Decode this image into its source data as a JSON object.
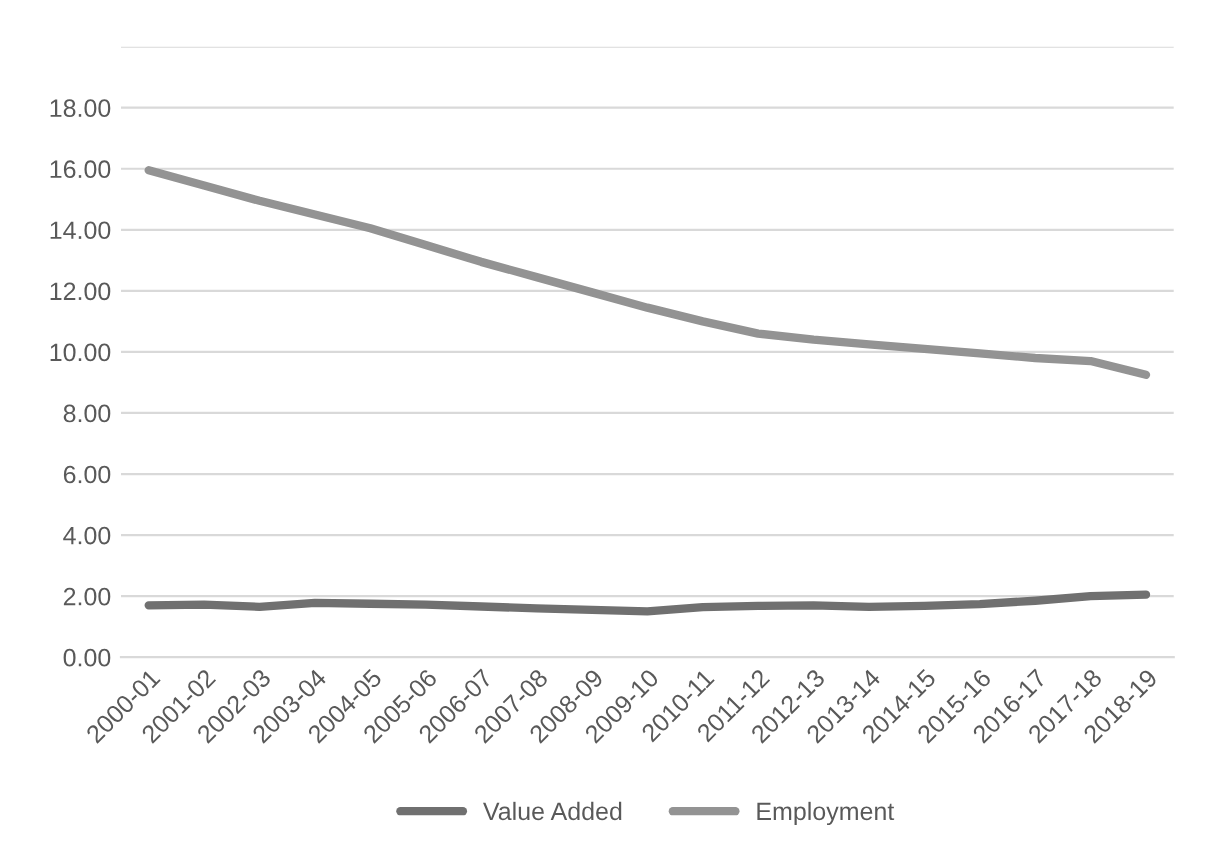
{
  "chart_data": {
    "type": "line",
    "categories": [
      "2000-01",
      "2001-02",
      "2002-03",
      "2003-04",
      "2004-05",
      "2005-06",
      "2006-07",
      "2007-08",
      "2008-09",
      "2009-10",
      "2010-11",
      "2011-12",
      "2012-13",
      "2013-14",
      "2014-15",
      "2015-16",
      "2016-17",
      "2017-18",
      "2018-19"
    ],
    "series": [
      {
        "name": "Value Added",
        "color": "#707070",
        "values": [
          1.7,
          1.72,
          1.65,
          1.78,
          1.75,
          1.72,
          1.66,
          1.6,
          1.55,
          1.5,
          1.64,
          1.68,
          1.7,
          1.65,
          1.68,
          1.74,
          1.85,
          2.0,
          2.05
        ]
      },
      {
        "name": "Employment",
        "color": "#939393",
        "values": [
          15.95,
          15.45,
          14.95,
          14.5,
          14.05,
          13.5,
          12.95,
          12.45,
          11.95,
          11.45,
          11.0,
          10.6,
          10.4,
          10.25,
          10.1,
          9.95,
          9.8,
          9.7,
          9.25
        ]
      }
    ],
    "ylim": [
      0,
      20
    ],
    "yticks": [
      {
        "value": 0,
        "label": "0.00"
      },
      {
        "value": 2,
        "label": "2.00"
      },
      {
        "value": 4,
        "label": "4.00"
      },
      {
        "value": 6,
        "label": "6.00"
      },
      {
        "value": 8,
        "label": "8.00"
      },
      {
        "value": 10,
        "label": "10.00"
      },
      {
        "value": 12,
        "label": "12.00"
      },
      {
        "value": 14,
        "label": "14.00"
      },
      {
        "value": 16,
        "label": "16.00"
      },
      {
        "value": 18,
        "label": "18.00"
      },
      {
        "value": 20,
        "label": null
      }
    ],
    "grid": "y",
    "legend": "bottom",
    "marker": "none",
    "line_style": "solid"
  }
}
